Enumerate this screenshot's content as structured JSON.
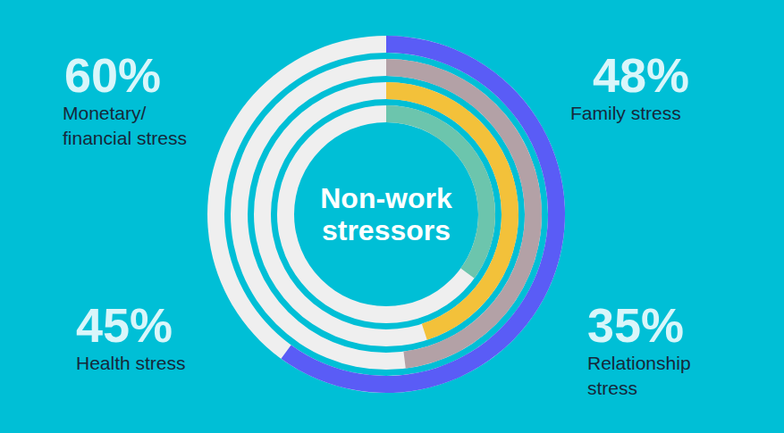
{
  "chart_data": {
    "type": "radial_bar",
    "title": "Non-work stressors",
    "categories": [
      "Monetary/ financial stress",
      "Family stress",
      "Health stress",
      "Relationship stress"
    ],
    "values": [
      60,
      48,
      45,
      35
    ],
    "value_labels": [
      "60%",
      "48%",
      "45%",
      "35%"
    ],
    "colors": [
      "#5a5cf6",
      "#b3a1a6",
      "#f3c13a",
      "#6cc5ad"
    ],
    "ylim": [
      0,
      100
    ],
    "data_labels": true,
    "tick_labels": false
  }
}
